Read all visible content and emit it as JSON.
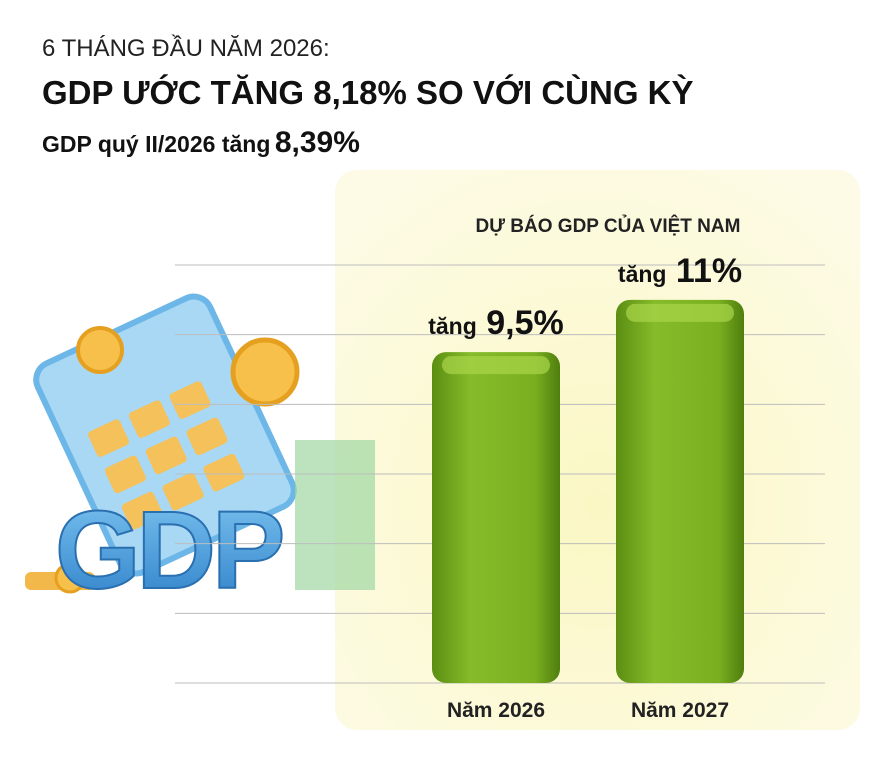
{
  "header": {
    "kicker": "6 THÁNG ĐẦU NĂM 2026:",
    "title": "GDP ƯỚC TĂNG 8,18% SO VỚI CÙNG KỲ",
    "subtitle": "GDP quý II/2026 tăng",
    "subtitle_value": "8,39%"
  },
  "illustration_text": "GDP",
  "chart_data": {
    "type": "bar",
    "title": "DỰ BÁO GDP CỦA VIỆT NAM",
    "categories": [
      "Năm 2026",
      "Năm 2027"
    ],
    "values": [
      9.5,
      11
    ],
    "value_labels": [
      "tăng 9,5%",
      "tăng 11%"
    ],
    "color": "#6fa31f",
    "ylim": [
      0,
      12
    ],
    "yticks": [
      0,
      2,
      4,
      6,
      8,
      10,
      12
    ],
    "grid": true
  }
}
